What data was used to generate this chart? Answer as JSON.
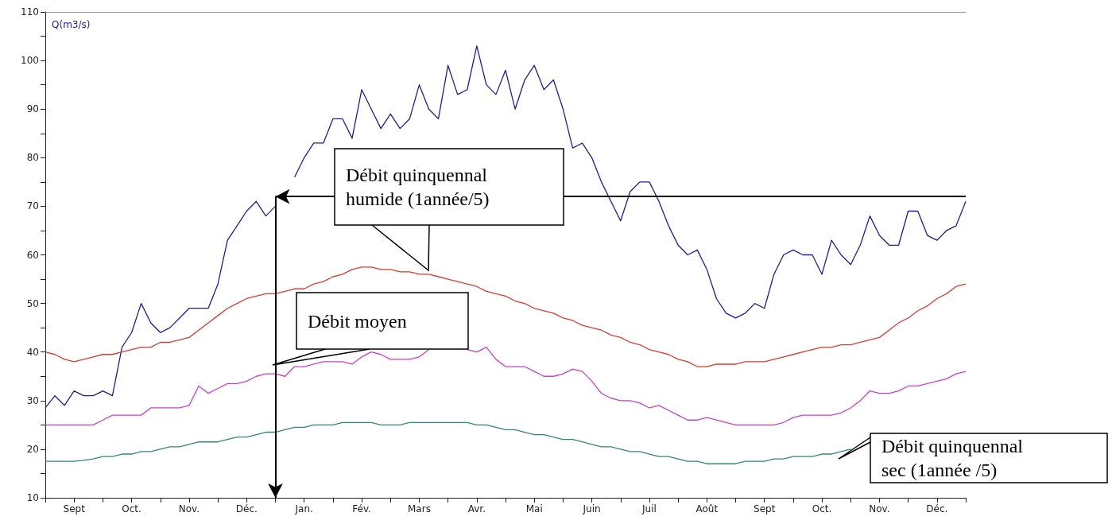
{
  "chart_data": {
    "type": "line",
    "ylabel": "Q(m3/s)",
    "ylim": [
      10,
      110
    ],
    "categories": [
      null,
      null,
      null,
      "Sept",
      null,
      null,
      null,
      null,
      null,
      "Oct.",
      null,
      null,
      null,
      null,
      null,
      "Nov.",
      null,
      null,
      null,
      null,
      null,
      "Déc.",
      null,
      null,
      null,
      null,
      null,
      "Jan.",
      null,
      null,
      null,
      null,
      null,
      "Fév.",
      null,
      null,
      null,
      null,
      null,
      "Mars",
      null,
      null,
      null,
      null,
      null,
      "Avr.",
      null,
      null,
      null,
      null,
      null,
      "Mai",
      null,
      null,
      null,
      null,
      null,
      "Juin",
      null,
      null,
      null,
      null,
      null,
      "Juil",
      null,
      null,
      null,
      null,
      null,
      "Août",
      null,
      null,
      null,
      null,
      null,
      "Sept",
      null,
      null,
      null,
      null,
      null,
      "Oct.",
      null,
      null,
      null,
      null,
      null,
      "Nov.",
      null,
      null,
      null,
      null,
      null,
      "Déc.",
      null,
      null,
      null
    ],
    "yticks": [
      10,
      {
        "value": 15,
        "label": null
      },
      20,
      {
        "value": 25,
        "label": null
      },
      30,
      {
        "value": 35,
        "label": null
      },
      40,
      {
        "value": 45,
        "label": null
      },
      50,
      {
        "value": 55,
        "label": null
      },
      60,
      {
        "value": 65,
        "label": null
      },
      70,
      {
        "value": 75,
        "label": null
      },
      80,
      {
        "value": 85,
        "label": null
      },
      90,
      {
        "value": 95,
        "label": null
      },
      100,
      {
        "value": 105,
        "label": null
      },
      110
    ],
    "grid": false,
    "series": [
      {
        "color": "#1c1ca8",
        "values": [
          28.5,
          31,
          29,
          32,
          31,
          31,
          32,
          31,
          41,
          44,
          50,
          46,
          44,
          45,
          47,
          49,
          49,
          49,
          54,
          63,
          66,
          69,
          71,
          68,
          70,
          null,
          76,
          80,
          83,
          83,
          88,
          88,
          84,
          94,
          90,
          86,
          89,
          86,
          88,
          95,
          90,
          88,
          99,
          93,
          94,
          103,
          95,
          93,
          98,
          90,
          96,
          99,
          94,
          96,
          90,
          82,
          83,
          80,
          75,
          71,
          67,
          73,
          75,
          75,
          71,
          66,
          62,
          60,
          61,
          57,
          51,
          48,
          47,
          48,
          50,
          49,
          56,
          60,
          61,
          60,
          60,
          56,
          63,
          60,
          58,
          62,
          68,
          64,
          62,
          62,
          69,
          69,
          64,
          63,
          65,
          66,
          71
        ]
      },
      {
        "color": "#e03a2e",
        "values": [
          40,
          39.5,
          38.5,
          38,
          38.5,
          39,
          39.5,
          39.5,
          40,
          40.5,
          41,
          41,
          42,
          42,
          42.5,
          43,
          44.5,
          46,
          47.5,
          49,
          50,
          51,
          51.5,
          52,
          52,
          52.5,
          53,
          53,
          54,
          54.5,
          55.5,
          56,
          57,
          57.5,
          57.5,
          57,
          57,
          56.5,
          56.5,
          56,
          56,
          55.5,
          55,
          54.5,
          54,
          53.5,
          52.5,
          52,
          51.5,
          50.5,
          50,
          49,
          48.5,
          48,
          47,
          46.5,
          45.5,
          45,
          44.5,
          43.5,
          43,
          42,
          41.5,
          40.5,
          40,
          39.5,
          38.5,
          38,
          37,
          37,
          37.5,
          37.5,
          37.5,
          38,
          38,
          38,
          38.5,
          39,
          39.5,
          40,
          40.5,
          41,
          41,
          41.5,
          41.5,
          42,
          42.5,
          43,
          44.5,
          46,
          47,
          48.5,
          49.5,
          51,
          52,
          53.5,
          54
        ]
      },
      {
        "color": "#cc3fcc",
        "values": [
          25,
          25,
          25,
          25,
          25,
          25,
          26,
          27,
          27,
          27,
          27,
          28.5,
          28.5,
          28.5,
          28.5,
          29,
          33,
          31.5,
          32.5,
          33.5,
          33.5,
          34,
          35,
          35.5,
          35.5,
          35,
          37,
          37,
          37.5,
          38,
          38,
          38,
          37.5,
          39,
          40,
          39.5,
          38.5,
          38.5,
          38.5,
          39,
          40.5,
          null,
          null,
          null,
          40.5,
          40,
          41,
          38.5,
          37,
          37,
          37,
          36,
          35,
          35,
          35.5,
          36.5,
          36,
          34,
          31.5,
          30.5,
          30,
          30,
          29.5,
          28.5,
          29,
          28,
          27,
          26,
          26,
          26.5,
          26,
          25.5,
          25,
          25,
          25,
          25,
          25,
          25.5,
          26.5,
          27,
          27,
          27,
          27,
          27.5,
          28.5,
          30,
          32,
          31.5,
          31.5,
          32,
          33,
          33,
          33.5,
          34,
          34.5,
          35.5,
          36
        ]
      },
      {
        "color": "#2e8a78",
        "values": [
          17.5,
          17.5,
          17.5,
          17.5,
          17.7,
          18,
          18.5,
          18.5,
          19,
          19,
          19.5,
          19.5,
          20,
          20.5,
          20.5,
          21,
          21.5,
          21.5,
          21.5,
          22,
          22.5,
          22.5,
          23,
          23.5,
          23.5,
          24,
          24.5,
          24.5,
          25,
          25,
          25,
          25.5,
          25.5,
          25.5,
          25.5,
          25,
          25,
          25,
          25.5,
          25.5,
          25.5,
          25.5,
          25.5,
          25.5,
          25.5,
          25,
          25,
          24.5,
          24,
          24,
          23.5,
          23,
          23,
          22.5,
          22,
          22,
          21.5,
          21,
          20.5,
          20.5,
          20,
          19.5,
          19.5,
          19,
          18.5,
          18.5,
          18,
          17.5,
          17.5,
          17,
          17,
          17,
          17,
          17.5,
          17.5,
          17.5,
          18,
          18,
          18.5,
          18.5,
          18.5,
          19,
          19,
          19.5,
          20,
          null,
          null,
          null,
          null,
          null,
          null,
          null,
          null,
          null,
          null,
          null,
          null
        ]
      }
    ],
    "ref_lines": [
      {
        "axis": "y",
        "value": 72,
        "color": "#000000"
      }
    ],
    "annotations": [
      "Débit quinquennal\nhumide (1année/5)",
      "Débit moyen",
      "Débit quinquennal\nsec (1année /5)"
    ]
  }
}
